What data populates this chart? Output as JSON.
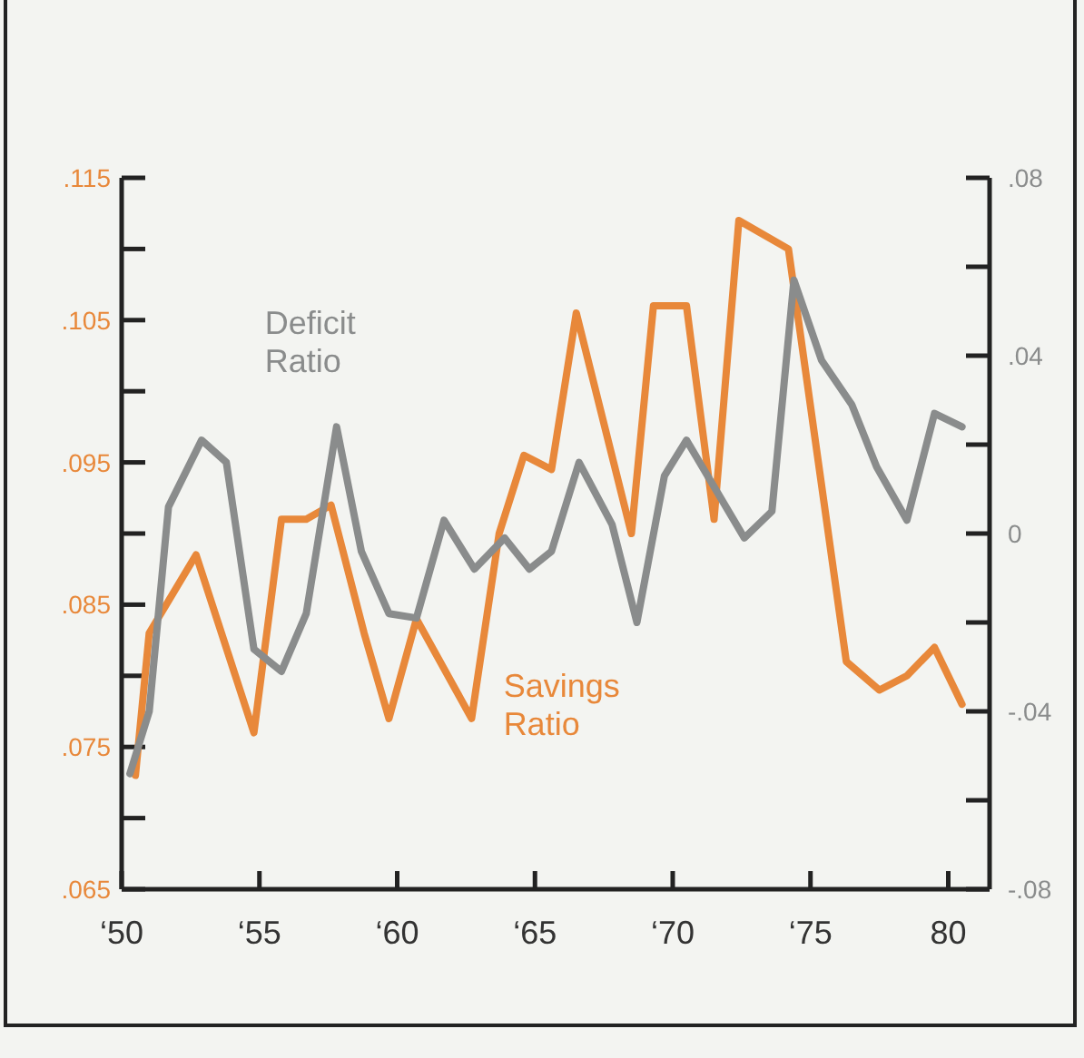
{
  "chart_data": {
    "type": "line",
    "xlim": [
      50,
      81.5
    ],
    "xticks": [
      {
        "value": 50,
        "label": "‘50"
      },
      {
        "value": 55,
        "label": "‘55"
      },
      {
        "value": 60,
        "label": "‘60"
      },
      {
        "value": 65,
        "label": "‘65"
      },
      {
        "value": 70,
        "label": "‘70"
      },
      {
        "value": 75,
        "label": "‘75"
      },
      80
    ],
    "ylim": [
      0.065,
      0.115
    ],
    "yticks": [
      {
        "value": 0.065,
        "label": ".065"
      },
      {
        "value": 0.07,
        "label": null
      },
      {
        "value": 0.075,
        "label": ".075"
      },
      {
        "value": 0.08,
        "label": null
      },
      {
        "value": 0.085,
        "label": ".085"
      },
      {
        "value": 0.09,
        "label": null
      },
      {
        "value": 0.095,
        "label": ".095"
      },
      {
        "value": 0.1,
        "label": null
      },
      {
        "value": 0.105,
        "label": ".105"
      },
      {
        "value": 0.11,
        "label": null
      },
      {
        "value": 0.115,
        "label": ".115"
      }
    ],
    "y2lim": [
      -0.08,
      0.08
    ],
    "y2ticks": [
      {
        "value": -0.08,
        "label": "-.08"
      },
      {
        "value": -0.06,
        "label": null
      },
      {
        "value": -0.04,
        "label": "-.04"
      },
      {
        "value": -0.02,
        "label": null
      },
      {
        "value": 0,
        "label": "0"
      },
      {
        "value": 0.02,
        "label": null
      },
      {
        "value": 0.04,
        "label": ".04"
      },
      {
        "value": 0.06,
        "label": null
      },
      {
        "value": 0.08,
        "label": ".08"
      }
    ],
    "grid": false,
    "marker": "none",
    "line_style": "solid",
    "series": [
      {
        "name": "Savings Ratio",
        "color": "#e8883a",
        "x": [
          50.5,
          51,
          52.7,
          54.8,
          55.8,
          56.7,
          57.6,
          58.8,
          59.7,
          60.7,
          62.7,
          63.7,
          64.6,
          65.6,
          66.5,
          68.5,
          69.3,
          70.5,
          71.5,
          72.4,
          74.2,
          76.3,
          77.5,
          78.5,
          79.5,
          80.5
        ],
        "values": [
          0.073,
          0.083,
          0.0885,
          0.076,
          0.091,
          0.091,
          0.092,
          0.083,
          0.077,
          0.084,
          0.077,
          0.09,
          0.0955,
          0.0945,
          0.1055,
          0.09,
          0.106,
          0.106,
          0.091,
          0.112,
          0.11,
          0.081,
          0.079,
          0.08,
          0.082,
          0.078
        ]
      },
      {
        "name": "Deficit Ratio",
        "color": "#8a8c8c",
        "axis": "y2",
        "x": [
          50.3,
          51,
          51.7,
          52.9,
          53.8,
          54.8,
          55.8,
          56.7,
          57.8,
          58.7,
          59.7,
          60.7,
          61.7,
          62.8,
          63.9,
          64.8,
          65.6,
          66.6,
          67.8,
          68.7,
          69.7,
          70.5,
          72.6,
          73.6,
          74.4,
          75.4,
          76.5,
          77.4,
          78.5,
          79.5,
          80.5
        ],
        "values": [
          -0.054,
          -0.04,
          0.006,
          0.021,
          0.016,
          -0.026,
          -0.031,
          -0.018,
          0.024,
          -0.004,
          -0.018,
          -0.019,
          0.003,
          -0.008,
          -0.001,
          -0.008,
          -0.004,
          0.016,
          0.002,
          -0.02,
          0.013,
          0.021,
          -0.001,
          0.005,
          0.057,
          0.039,
          0.029,
          0.015,
          0.003,
          0.027,
          0.024
        ]
      }
    ]
  }
}
